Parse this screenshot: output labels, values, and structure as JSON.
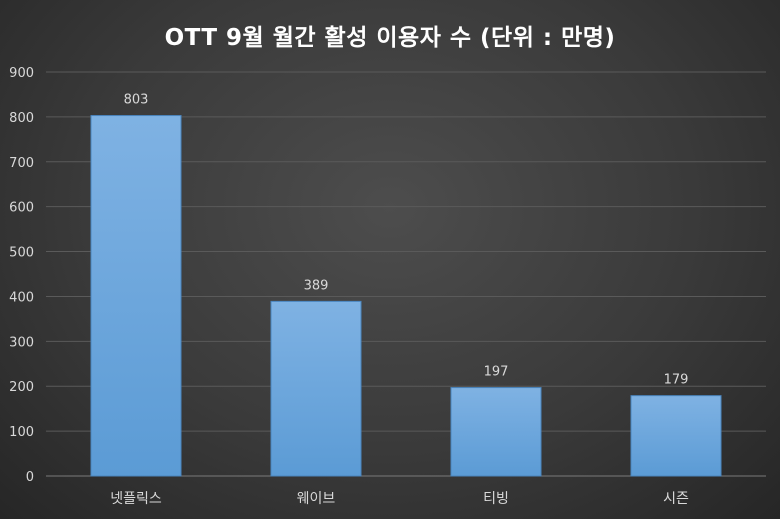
{
  "chart_data": {
    "type": "bar",
    "title": "OTT 9월 월간 활성 이용자 수 (단위 : 만명)",
    "categories": [
      "넷플릭스",
      "웨이브",
      "티빙",
      "시즌"
    ],
    "values": [
      803,
      389,
      197,
      179
    ],
    "ylim": [
      0,
      900
    ],
    "yticks": [
      0,
      100,
      200,
      300,
      400,
      500,
      600,
      700,
      800,
      900
    ],
    "grid": true,
    "data_labels": true,
    "bar_color": "#5b9bd5",
    "bar_color_light": "#7fb2e3",
    "background_color": "#404040"
  }
}
